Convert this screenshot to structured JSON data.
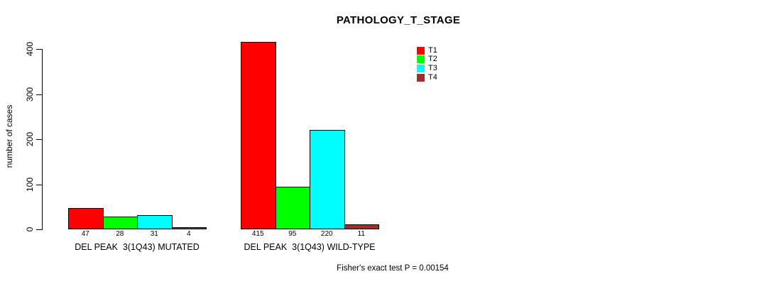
{
  "chart_data": {
    "type": "bar",
    "title": "PATHOLOGY_T_STAGE",
    "ylabel": "number of cases",
    "note": "Fisher's exact test P = 0.00154",
    "ylim": [
      0,
      400
    ],
    "yticks": [
      0,
      100,
      200,
      300,
      400
    ],
    "grid": false,
    "legend_position": "top-right",
    "categories": [
      "DEL PEAK  3(1Q43) MUTATED",
      "DEL PEAK  3(1Q43) WILD-TYPE"
    ],
    "series": [
      {
        "name": "T1",
        "color": "#FF0000",
        "values": [
          47,
          415
        ]
      },
      {
        "name": "T2",
        "color": "#00FF00",
        "values": [
          28,
          95
        ]
      },
      {
        "name": "T3",
        "color": "#00FFFF",
        "values": [
          31,
          220
        ]
      },
      {
        "name": "T4",
        "color": "#A52A2A",
        "values": [
          4,
          11
        ]
      }
    ],
    "colors": {
      "background": "#FFFFFF",
      "axis": "#000000",
      "bar_border": "#000000"
    }
  }
}
